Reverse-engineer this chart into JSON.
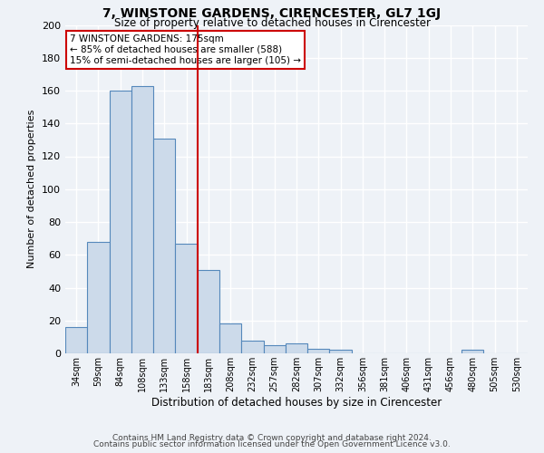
{
  "title": "7, WINSTONE GARDENS, CIRENCESTER, GL7 1GJ",
  "subtitle": "Size of property relative to detached houses in Cirencester",
  "xlabel": "Distribution of detached houses by size in Cirencester",
  "ylabel": "Number of detached properties",
  "bar_labels": [
    "34sqm",
    "59sqm",
    "84sqm",
    "108sqm",
    "133sqm",
    "158sqm",
    "183sqm",
    "208sqm",
    "232sqm",
    "257sqm",
    "282sqm",
    "307sqm",
    "332sqm",
    "356sqm",
    "381sqm",
    "406sqm",
    "431sqm",
    "456sqm",
    "480sqm",
    "505sqm",
    "530sqm"
  ],
  "bar_values": [
    16,
    68,
    160,
    163,
    131,
    67,
    51,
    18,
    8,
    5,
    6,
    3,
    2,
    0,
    0,
    0,
    0,
    0,
    2,
    0,
    0
  ],
  "bar_color": "#ccdaea",
  "bar_edge_color": "#5588bb",
  "vline_color": "#cc0000",
  "annotation_title": "7 WINSTONE GARDENS: 175sqm",
  "annotation_line1": "← 85% of detached houses are smaller (588)",
  "annotation_line2": "15% of semi-detached houses are larger (105) →",
  "annotation_box_color": "#ffffff",
  "annotation_box_edge": "#cc0000",
  "ylim": [
    0,
    200
  ],
  "yticks": [
    0,
    20,
    40,
    60,
    80,
    100,
    120,
    140,
    160,
    180,
    200
  ],
  "footer1": "Contains HM Land Registry data © Crown copyright and database right 2024.",
  "footer2": "Contains public sector information licensed under the Open Government Licence v3.0.",
  "bg_color": "#eef2f7",
  "grid_color": "#ffffff"
}
